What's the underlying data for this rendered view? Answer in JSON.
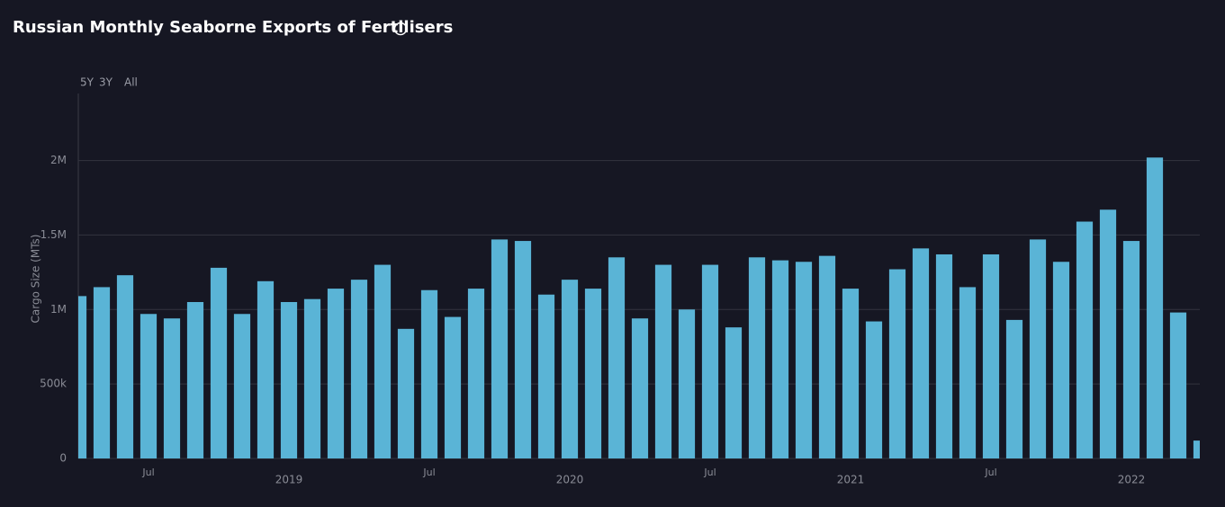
{
  "chart_data": {
    "type": "bar",
    "title": "Russian Monthly Seaborne Exports of Fertilisers",
    "range_buttons": [
      "5Y",
      "3Y",
      "All"
    ],
    "y_label": "Cargo Size (MTs)",
    "color": "#5ab4d6",
    "grid": true,
    "x": [
      "2018-04",
      "2018-05",
      "2018-06",
      "2018-07",
      "2018-08",
      "2018-09",
      "2018-10",
      "2018-11",
      "2018-12",
      "2019-01",
      "2019-02",
      "2019-03",
      "2019-04",
      "2019-05",
      "2019-06",
      "2019-07",
      "2019-08",
      "2019-09",
      "2019-10",
      "2019-11",
      "2019-12",
      "2020-01",
      "2020-02",
      "2020-03",
      "2020-04",
      "2020-05",
      "2020-06",
      "2020-07",
      "2020-08",
      "2020-09",
      "2020-10",
      "2020-11",
      "2020-12",
      "2021-01",
      "2021-02",
      "2021-03",
      "2021-04",
      "2021-05",
      "2021-06",
      "2021-07",
      "2021-08",
      "2021-09",
      "2021-10",
      "2021-11",
      "2021-12",
      "2022-01",
      "2022-02",
      "2022-03",
      "2022-04"
    ],
    "values": [
      1090000,
      1150000,
      1230000,
      970000,
      940000,
      1050000,
      1280000,
      970000,
      1190000,
      1050000,
      1070000,
      1140000,
      1200000,
      1300000,
      870000,
      1130000,
      950000,
      1140000,
      1470000,
      1460000,
      1100000,
      1200000,
      1140000,
      1350000,
      940000,
      1300000,
      1000000,
      1300000,
      880000,
      1350000,
      1330000,
      1320000,
      1360000,
      1140000,
      920000,
      1270000,
      1410000,
      1370000,
      1150000,
      1370000,
      930000,
      1470000,
      1320000,
      1590000,
      1670000,
      1460000,
      2020000,
      980000,
      120000
    ],
    "xlim": [
      "2018-04",
      "2022-04"
    ],
    "xticks": [
      {
        "value": "2018-07",
        "label": "Jul"
      },
      {
        "value": "2019-01",
        "label": "2019"
      },
      {
        "value": "2019-07",
        "label": "Jul"
      },
      {
        "value": "2020-01",
        "label": "2020"
      },
      {
        "value": "2020-07",
        "label": "Jul"
      },
      {
        "value": "2021-01",
        "label": "2021"
      },
      {
        "value": "2021-07",
        "label": "Jul"
      },
      {
        "value": "2022-01",
        "label": "2022"
      }
    ],
    "ylim": [
      0,
      2450000
    ],
    "yticks": [
      {
        "value": 0,
        "label": "0"
      },
      {
        "value": 500000,
        "label": "500k"
      },
      {
        "value": 1000000,
        "label": "1M"
      },
      {
        "value": 1500000,
        "label": "1.5M"
      },
      {
        "value": 2000000,
        "label": "2M"
      }
    ]
  }
}
